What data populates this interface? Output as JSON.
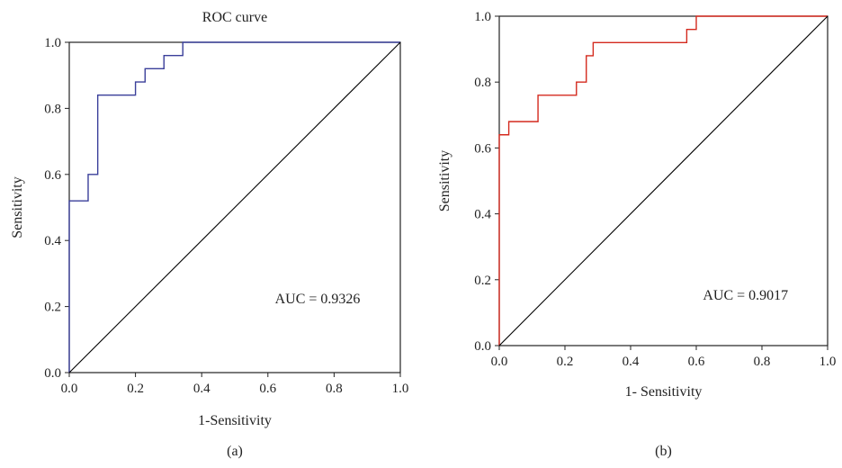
{
  "chart_data": [
    {
      "type": "line",
      "panel_label": "(a)",
      "title": "ROC curve",
      "xlabel": "1-Sensitivity",
      "ylabel": "Sensitivity",
      "xlim": [
        0,
        1
      ],
      "ylim": [
        0,
        1
      ],
      "x_ticks": [
        "0.0",
        "0.2",
        "0.4",
        "0.6",
        "0.8",
        "1.0"
      ],
      "y_ticks": [
        "0.0",
        "0.2",
        "0.4",
        "0.6",
        "0.8",
        "1.0"
      ],
      "annotation": "AUC = 0.9326",
      "grid": false,
      "series": [
        {
          "color": "#3a3f9a",
          "x": [
            0.0,
            0.0,
            0.057,
            0.057,
            0.086,
            0.086,
            0.2,
            0.2,
            0.229,
            0.229,
            0.286,
            0.286,
            0.343,
            0.343,
            1.0
          ],
          "y": [
            0.0,
            0.52,
            0.52,
            0.6,
            0.6,
            0.84,
            0.84,
            0.88,
            0.88,
            0.92,
            0.92,
            0.96,
            0.96,
            1.0,
            1.0
          ]
        },
        {
          "color": "#000000",
          "x": [
            0,
            1
          ],
          "y": [
            0,
            1
          ]
        }
      ]
    },
    {
      "type": "line",
      "panel_label": "(b)",
      "title": "",
      "xlabel": "1- Sensitivity",
      "ylabel": "Sensitivity",
      "xlim": [
        0,
        1
      ],
      "ylim": [
        0,
        1
      ],
      "x_ticks": [
        "0.0",
        "0.2",
        "0.4",
        "0.6",
        "0.8",
        "1.0"
      ],
      "y_ticks": [
        "0.0",
        "0.2",
        "0.4",
        "0.6",
        "0.8",
        "1.0"
      ],
      "annotation": "AUC = 0.9017",
      "grid": false,
      "series": [
        {
          "color": "#d42a1e",
          "x": [
            0.0,
            0.0,
            0.029,
            0.029,
            0.118,
            0.118,
            0.235,
            0.235,
            0.265,
            0.265,
            0.286,
            0.286,
            0.571,
            0.571,
            0.6,
            0.6,
            1.0
          ],
          "y": [
            0.0,
            0.64,
            0.64,
            0.68,
            0.68,
            0.76,
            0.76,
            0.8,
            0.8,
            0.88,
            0.88,
            0.92,
            0.92,
            0.96,
            0.96,
            1.0,
            1.0
          ]
        },
        {
          "color": "#000000",
          "x": [
            0,
            1
          ],
          "y": [
            0,
            1
          ]
        }
      ]
    }
  ]
}
